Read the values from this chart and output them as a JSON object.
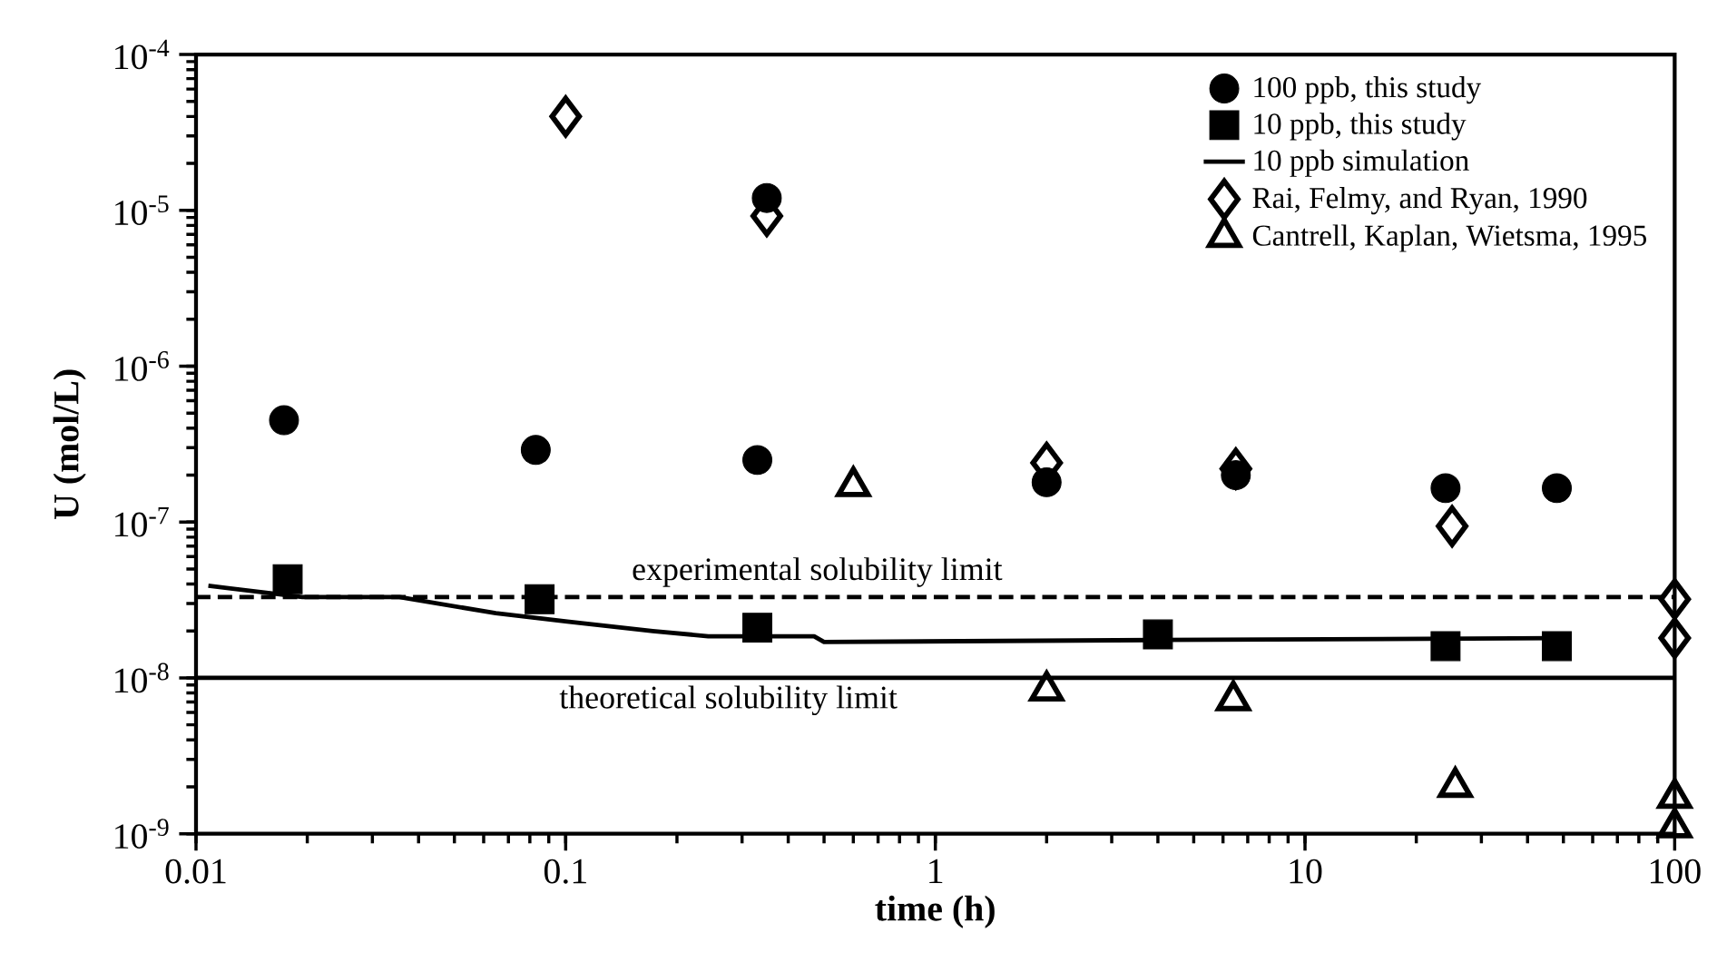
{
  "chart_data": {
    "type": "scatter",
    "xlabel": "time  (h)",
    "ylabel": "U  (mol/L)",
    "log": "xy",
    "grid": false,
    "legend": "top right",
    "xlim": [
      0.01,
      100
    ],
    "xticks": [
      0.01,
      0.1,
      1,
      10,
      100
    ],
    "ylim": [
      1e-09,
      0.0001
    ],
    "yticks": [
      {
        "value": 1e-09,
        "label": "10$^{-9}$"
      },
      {
        "value": 1e-08,
        "label": "10$^{-8}$"
      },
      {
        "value": 1e-07,
        "label": "10$^{-7}$"
      },
      {
        "value": 1e-06,
        "label": "10$^{-6}$"
      },
      {
        "value": 1e-05,
        "label": "10$^{-5}$"
      },
      {
        "value": 0.0001,
        "label": "10$^{-4}$"
      }
    ],
    "series": [
      {
        "name": "100 ppb, this study",
        "marker": "circle",
        "color": "#000000",
        "x": [
          0.0173,
          0.083,
          0.33,
          0.35,
          2,
          6.5,
          24,
          48
        ],
        "values": [
          4.5e-07,
          2.9e-07,
          2.5e-07,
          1.2e-05,
          1.8e-07,
          2e-07,
          1.65e-07,
          1.65e-07
        ]
      },
      {
        "name": "10 ppb, this study",
        "marker": "square",
        "color": "#000000",
        "x": [
          0.0177,
          0.085,
          0.33,
          4,
          24,
          48
        ],
        "values": [
          4.3e-08,
          3.2e-08,
          2.1e-08,
          1.9e-08,
          1.6e-08,
          1.6e-08
        ]
      },
      {
        "name": "10 ppb simulation",
        "type": "line",
        "marker": "none",
        "line_style": "solid",
        "color": "#000000",
        "x": [
          0.0108,
          0.0194,
          0.0355,
          0.0647,
          0.101,
          0.172,
          0.243,
          0.47,
          0.5,
          4,
          48
        ],
        "values": [
          3.9e-08,
          3.3e-08,
          3.3e-08,
          2.6e-08,
          2.3e-08,
          2e-08,
          1.85e-08,
          1.85e-08,
          1.7e-08,
          1.75e-08,
          1.8e-08
        ]
      },
      {
        "name": "Rai, Felmy, and Ryan, 1990",
        "marker": "diamond",
        "color": "#000000",
        "x": [
          0.1,
          0.35,
          2,
          6.5,
          25,
          100,
          100
        ],
        "values": [
          4e-05,
          9.2e-06,
          2.4e-07,
          2.2e-07,
          9.4e-08,
          3.2e-08,
          1.8e-08
        ]
      },
      {
        "name": "Cantrell, Kaplan,  Wietsma, 1995",
        "marker": "triangle",
        "color": "#000000",
        "x": [
          0.6,
          2,
          6.4,
          25.5,
          100,
          100
        ],
        "values": [
          1.7e-07,
          8.3e-09,
          7.2e-09,
          2e-09,
          1.7e-09,
          1.1e-09
        ]
      }
    ],
    "ref_lines": [
      {
        "axis": "y",
        "value": 3.3e-08,
        "label": "experimental solubility limit",
        "line_style": "dashed",
        "color": "#000000"
      },
      {
        "axis": "y",
        "value": 1e-08,
        "label": "theoretical solubility limit",
        "line_style": "solid",
        "color": "#000000"
      }
    ]
  }
}
